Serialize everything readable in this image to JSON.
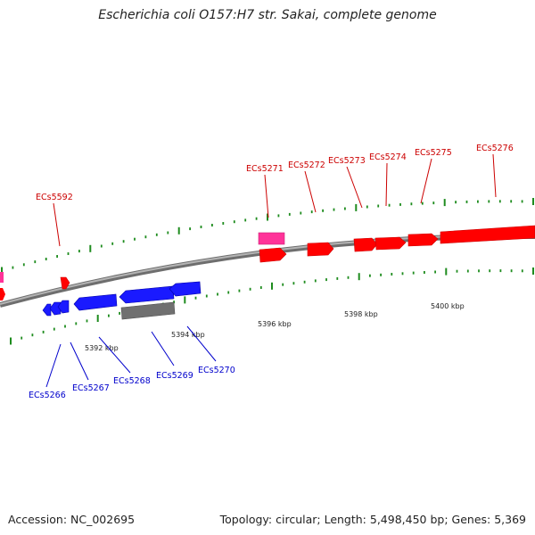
{
  "title": "Escherichia coli O157:H7 str. Sakai, complete genome",
  "accession": "Accession: NC_002695",
  "summary": "Topology: circular; Length: 5,498,450 bp; Genes: 5,369",
  "colors": {
    "forward_gene": "#ff0000",
    "reverse_gene": "#1a1aff",
    "pseudo_gene": "#ff3399",
    "other_feature": "#707070",
    "tick": "#1e8c1e",
    "backbone": "#8c8c8c",
    "forward_label": "#cc0000",
    "reverse_label": "#0000cc"
  },
  "scale_labels": [
    "5392 kbp",
    "5394 kbp",
    "5396 kbp",
    "5398 kbp",
    "5400 kbp"
  ],
  "forward_labels": [
    "ECs5592",
    "ECs5271",
    "ECs5272",
    "ECs5273",
    "ECs5274",
    "ECs5275",
    "ECs5276"
  ],
  "reverse_labels": [
    "ECs5266",
    "ECs5267",
    "ECs5268",
    "ECs5269",
    "ECs5270"
  ]
}
